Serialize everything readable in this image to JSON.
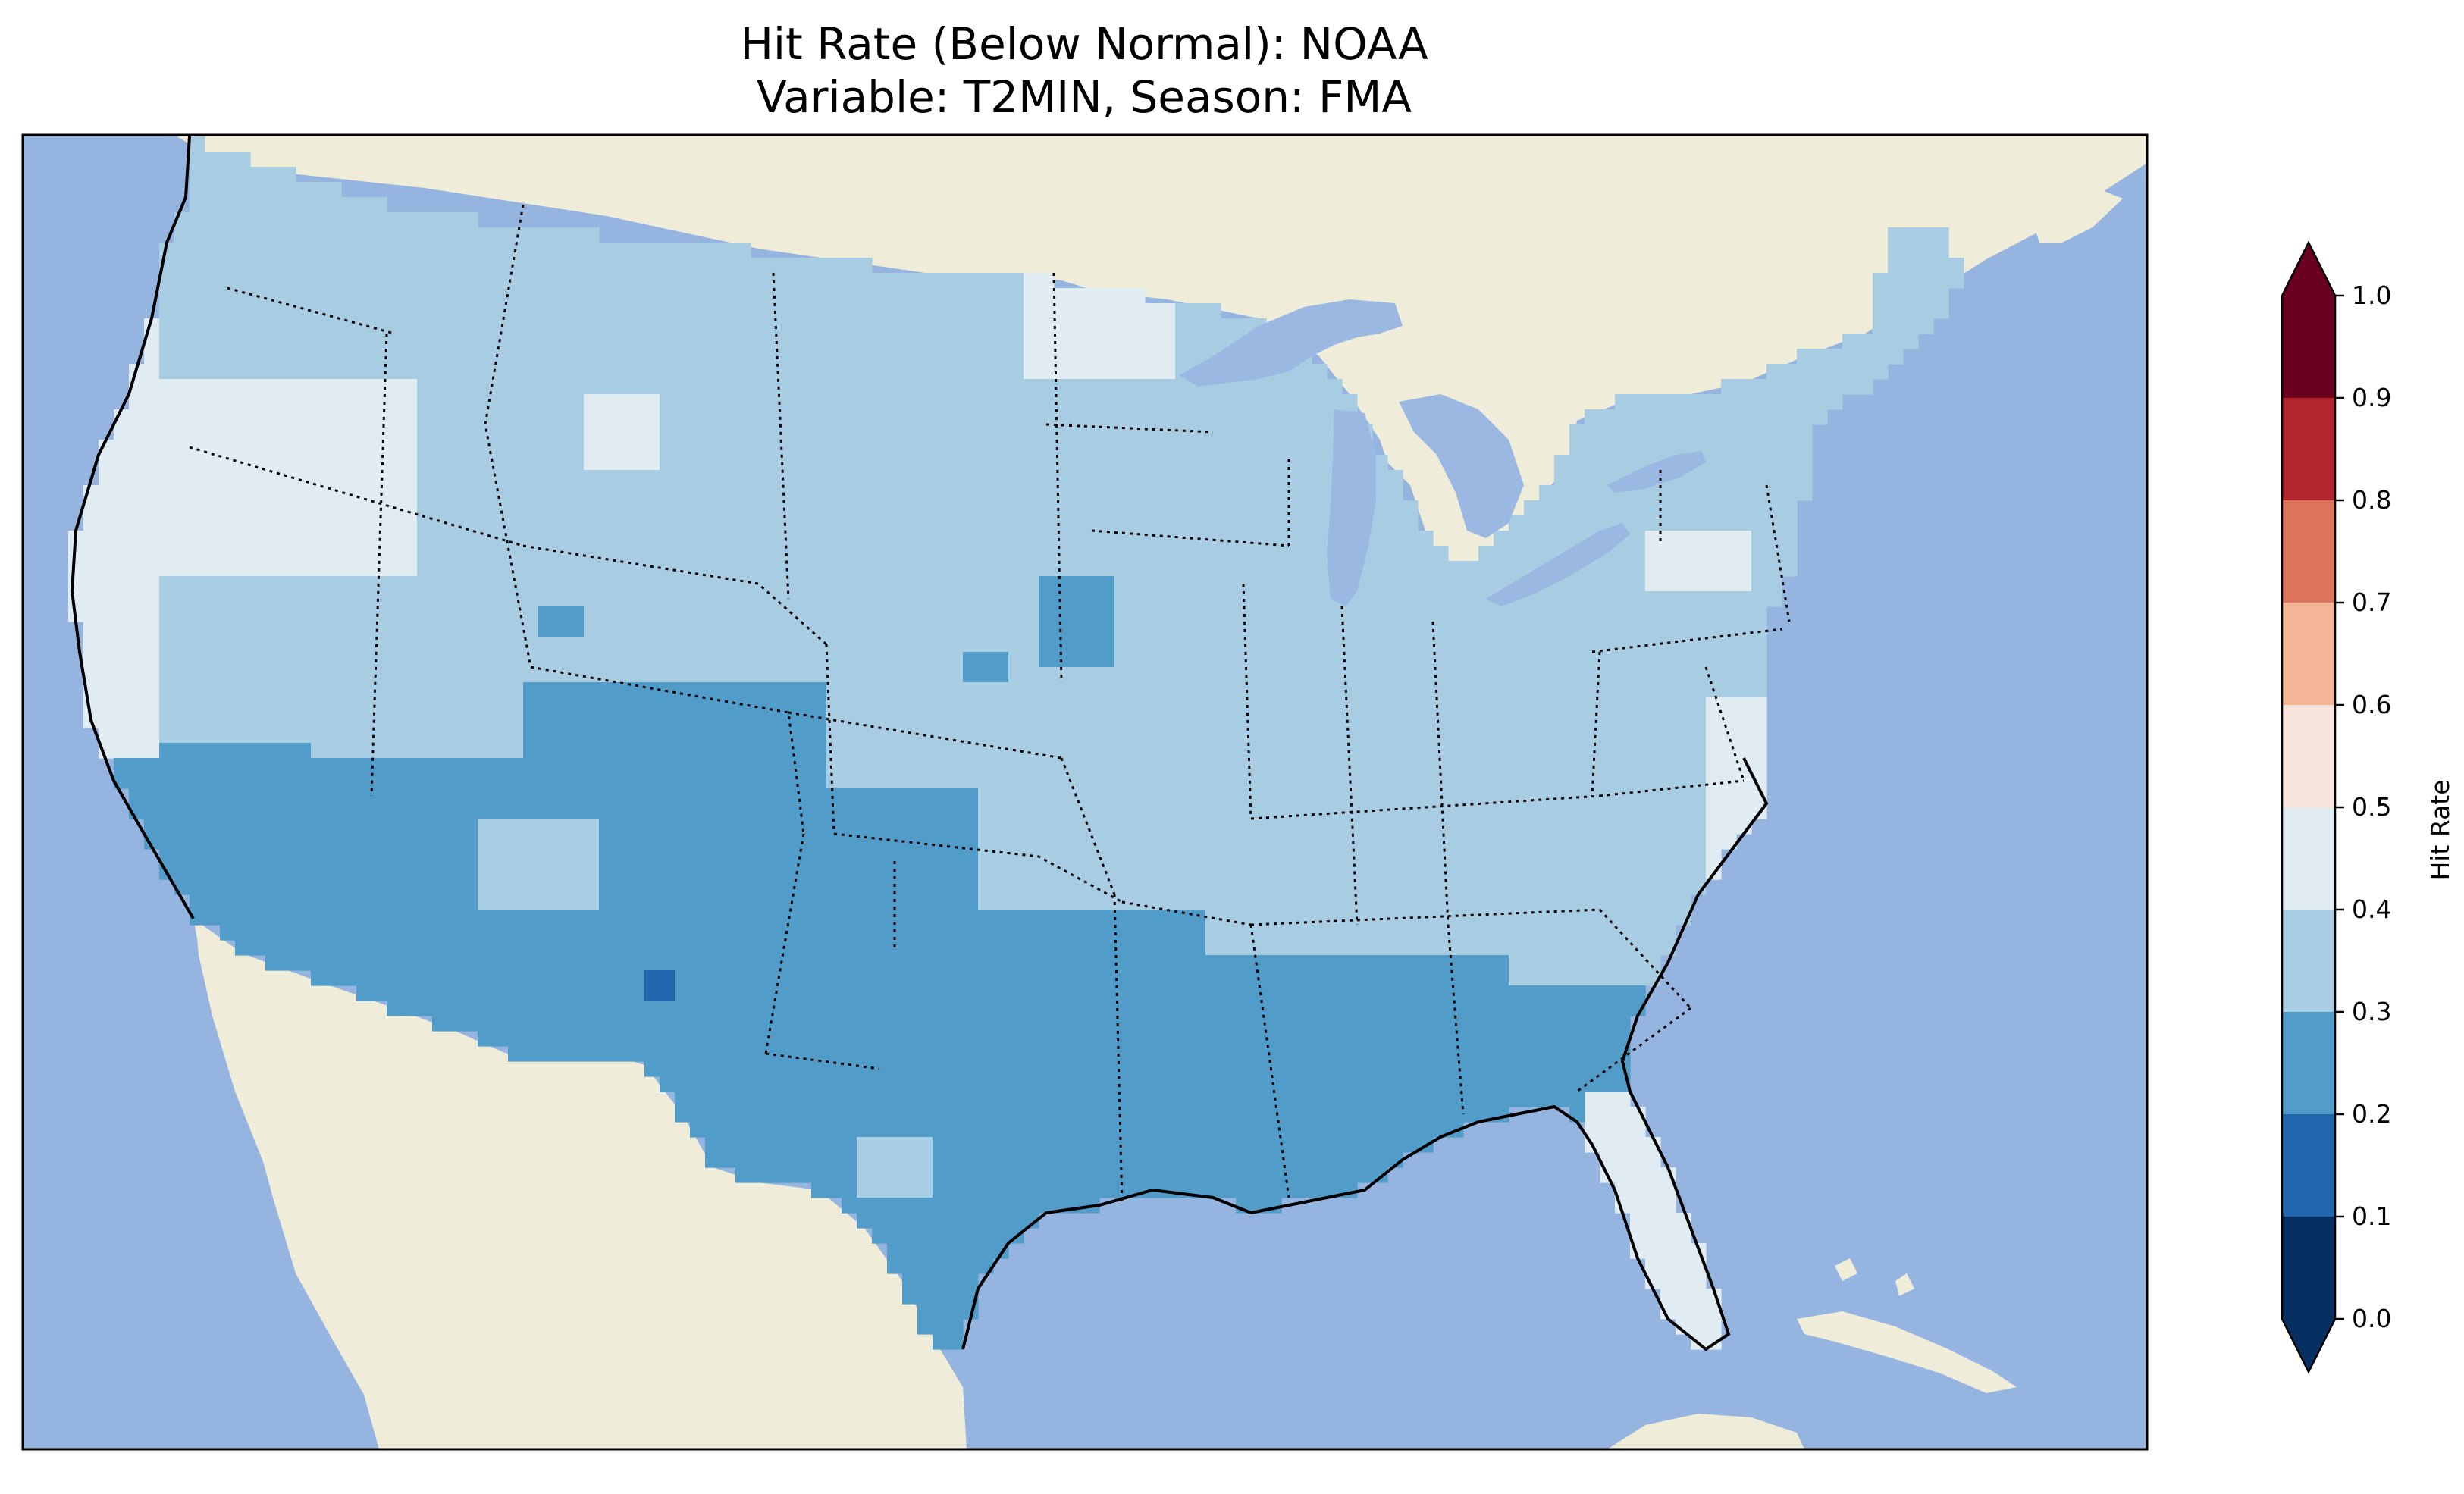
{
  "title": {
    "line1": "Hit Rate (Below Normal): NOAA",
    "line2": "Variable: T2MIN, Season: FMA"
  },
  "colors": {
    "ocean": "#95b4e0",
    "land": "#efedda",
    "lake": "#9ab8e2",
    "bin_0_1": "#053061",
    "bin_1_2": "#2166ac",
    "bin_2_3": "#529cc9",
    "bin_3_4": "#a8cde3",
    "bin_4_5": "#e0ebf2",
    "bin_5_6": "#f8e4da",
    "bin_6_7": "#f4b597",
    "bin_7_8": "#dc735b",
    "bin_8_9": "#b3252c",
    "bin_9_10": "#6b0020"
  },
  "chart_data": {
    "type": "heatmap",
    "projection": "PlateCarree",
    "domain": "Contiguous United States",
    "legend_placement": "right",
    "colorbar": {
      "label": "Hit Rate",
      "range": [
        0.0,
        1.0
      ],
      "extend": "both",
      "boundaries": [
        0.0,
        0.1,
        0.2,
        0.3,
        0.4,
        0.5,
        0.6,
        0.7,
        0.8,
        0.9,
        1.0
      ],
      "tick_labels": [
        "0.0",
        "0.1",
        "0.2",
        "0.3",
        "0.4",
        "0.5",
        "0.6",
        "0.7",
        "0.8",
        "0.9",
        "1.0"
      ],
      "colormap": "RdBu_r"
    },
    "regions": [
      {
        "area": "Pacific coast and Northwest interior",
        "hit_rate_bin": "0.4-0.5"
      },
      {
        "area": "Northern Rockies and Great Plains",
        "hit_rate_bin": "0.3-0.4"
      },
      {
        "area": "Midwest, Ohio Valley and Northeast",
        "hit_rate_bin": "0.3-0.4"
      },
      {
        "area": "Southwest and Central Rockies",
        "hit_rate_bin": "0.2-0.3"
      },
      {
        "area": "Texas and Gulf Coast states",
        "hit_rate_bin": "0.2-0.3"
      },
      {
        "area": "Central New Mexico spot",
        "hit_rate_bin": "0.1-0.2"
      },
      {
        "area": "Florida peninsula",
        "hit_rate_bin": "0.4-0.5"
      },
      {
        "area": "Nebraska/Iowa patches",
        "hit_rate_bin": "0.2-0.3"
      }
    ]
  }
}
